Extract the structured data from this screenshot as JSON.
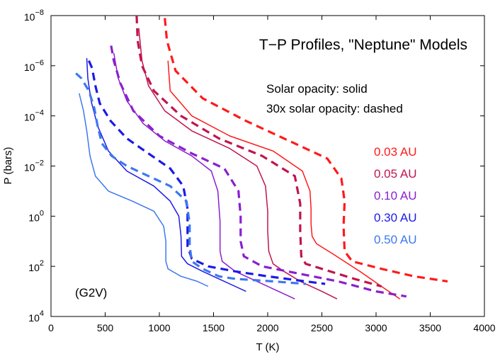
{
  "chart_data": {
    "type": "line",
    "title": "T−P Profiles, \"Neptune\" Models",
    "notes": [
      "Solar opacity: solid",
      "30x solar opacity: dashed"
    ],
    "annotation": "(G2V)",
    "xlabel": "T (K)",
    "ylabel": "P (bars)",
    "xlim": [
      0,
      4000
    ],
    "ylim_log10": [
      -8,
      4
    ],
    "y_inverted": true,
    "x_ticks": [
      "0",
      "500",
      "1000",
      "1500",
      "2000",
      "2500",
      "3000",
      "3500",
      "4000"
    ],
    "y_ticks": [
      {
        "base": "10",
        "exp": "−8"
      },
      {
        "base": "10",
        "exp": "−6"
      },
      {
        "base": "10",
        "exp": "−4"
      },
      {
        "base": "10",
        "exp": "−2"
      },
      {
        "base": "10",
        "exp": "0"
      },
      {
        "base": "10",
        "exp": "2"
      },
      {
        "base": "10",
        "exp": "4"
      }
    ],
    "legend": [
      {
        "label": "0.03 AU",
        "color": "#ff1a1a"
      },
      {
        "label": "0.05 AU",
        "color": "#c0154d"
      },
      {
        "label": "0.10 AU",
        "color": "#8a1fd0"
      },
      {
        "label": "0.30 AU",
        "color": "#1c1ae6"
      },
      {
        "label": "0.50 AU",
        "color": "#3c78f0"
      }
    ],
    "series": [
      {
        "name": "0.03 AU solar",
        "style": "solid",
        "color": "#ff1a1a",
        "points": [
          [
            1080,
            -6.2
          ],
          [
            1100,
            -5.0
          ],
          [
            1300,
            -4.0
          ],
          [
            1650,
            -3.2
          ],
          [
            2050,
            -2.6
          ],
          [
            2320,
            -1.8
          ],
          [
            2390,
            -1.0
          ],
          [
            2400,
            -0.3
          ],
          [
            2400,
            0.3
          ],
          [
            2410,
            0.8
          ],
          [
            2450,
            1.1
          ],
          [
            2600,
            1.5
          ],
          [
            2850,
            2.2
          ],
          [
            3050,
            2.8
          ],
          [
            3220,
            3.3
          ]
        ]
      },
      {
        "name": "0.05 AU solar",
        "style": "solid",
        "color": "#c0154d",
        "points": [
          [
            810,
            -7.5
          ],
          [
            840,
            -6.2
          ],
          [
            900,
            -5.2
          ],
          [
            1050,
            -4.2
          ],
          [
            1300,
            -3.4
          ],
          [
            1650,
            -2.7
          ],
          [
            1900,
            -2.0
          ],
          [
            1980,
            -1.2
          ],
          [
            2000,
            -0.2
          ],
          [
            2000,
            0.6
          ],
          [
            2010,
            1.4
          ],
          [
            2050,
            1.9
          ],
          [
            2150,
            2.2
          ],
          [
            2300,
            2.6
          ],
          [
            2500,
            3.0
          ],
          [
            2640,
            3.3
          ]
        ]
      },
      {
        "name": "0.10 AU solar",
        "style": "solid",
        "color": "#8a1fd0",
        "points": [
          [
            580,
            -6.5
          ],
          [
            620,
            -5.5
          ],
          [
            700,
            -4.6
          ],
          [
            850,
            -3.7
          ],
          [
            1050,
            -3.0
          ],
          [
            1300,
            -2.4
          ],
          [
            1480,
            -1.8
          ],
          [
            1540,
            -1.0
          ],
          [
            1560,
            0.2
          ],
          [
            1560,
            1.4
          ],
          [
            1580,
            1.8
          ],
          [
            1700,
            2.2
          ],
          [
            1900,
            2.6
          ],
          [
            2100,
            3.0
          ],
          [
            2250,
            3.3
          ]
        ]
      },
      {
        "name": "0.30 AU solar",
        "style": "solid",
        "color": "#1c1ae6",
        "points": [
          [
            330,
            -6.3
          ],
          [
            340,
            -5.5
          ],
          [
            370,
            -4.6
          ],
          [
            430,
            -3.6
          ],
          [
            530,
            -2.6
          ],
          [
            700,
            -1.8
          ],
          [
            950,
            -1.2
          ],
          [
            1100,
            -0.6
          ],
          [
            1180,
            0.0
          ],
          [
            1200,
            0.8
          ],
          [
            1205,
            1.6
          ],
          [
            1260,
            1.9
          ],
          [
            1400,
            2.2
          ],
          [
            1550,
            2.5
          ],
          [
            1700,
            2.8
          ],
          [
            1800,
            3.0
          ]
        ]
      },
      {
        "name": "0.50 AU solar",
        "style": "solid",
        "color": "#3c78f0",
        "points": [
          [
            260,
            -4.9
          ],
          [
            300,
            -4.2
          ],
          [
            330,
            -3.4
          ],
          [
            360,
            -2.4
          ],
          [
            410,
            -1.6
          ],
          [
            530,
            -1.0
          ],
          [
            750,
            -0.6
          ],
          [
            950,
            -0.2
          ],
          [
            1040,
            0.4
          ],
          [
            1060,
            1.0
          ],
          [
            1060,
            1.8
          ],
          [
            1080,
            2.1
          ],
          [
            1200,
            2.4
          ],
          [
            1350,
            2.6
          ],
          [
            1450,
            2.8
          ]
        ]
      },
      {
        "name": "0.03 AU 30x",
        "style": "dashed",
        "color": "#ff1a1a",
        "points": [
          [
            1050,
            -7.9
          ],
          [
            1070,
            -7.0
          ],
          [
            1150,
            -5.8
          ],
          [
            1400,
            -4.7
          ],
          [
            1800,
            -3.8
          ],
          [
            2200,
            -3.0
          ],
          [
            2550,
            -2.3
          ],
          [
            2680,
            -1.5
          ],
          [
            2710,
            -0.6
          ],
          [
            2700,
            0.4
          ],
          [
            2710,
            1.4
          ],
          [
            2780,
            1.8
          ],
          [
            3050,
            2.1
          ],
          [
            3350,
            2.4
          ],
          [
            3660,
            2.6
          ]
        ]
      },
      {
        "name": "0.05 AU 30x",
        "style": "dashed",
        "color": "#c0154d",
        "points": [
          [
            790,
            -8.0
          ],
          [
            800,
            -7.0
          ],
          [
            840,
            -6.0
          ],
          [
            950,
            -5.0
          ],
          [
            1200,
            -4.0
          ],
          [
            1550,
            -3.1
          ],
          [
            1950,
            -2.4
          ],
          [
            2250,
            -1.6
          ],
          [
            2300,
            -0.5
          ],
          [
            2300,
            0.6
          ],
          [
            2310,
            1.6
          ],
          [
            2350,
            1.9
          ],
          [
            2500,
            2.1
          ],
          [
            2800,
            2.5
          ],
          [
            3050,
            2.8
          ]
        ]
      },
      {
        "name": "0.10 AU 30x",
        "style": "dashed",
        "color": "#8a1fd0",
        "points": [
          [
            555,
            -6.8
          ],
          [
            580,
            -6.2
          ],
          [
            640,
            -5.3
          ],
          [
            760,
            -4.2
          ],
          [
            1000,
            -3.2
          ],
          [
            1300,
            -2.5
          ],
          [
            1600,
            -1.9
          ],
          [
            1730,
            -1.0
          ],
          [
            1750,
            0.0
          ],
          [
            1750,
            1.0
          ],
          [
            1780,
            1.6
          ],
          [
            1950,
            2.0
          ],
          [
            2300,
            2.3
          ],
          [
            2650,
            2.6
          ],
          [
            3000,
            3.0
          ],
          [
            3280,
            3.2
          ]
        ]
      },
      {
        "name": "0.30 AU 30x",
        "style": "dashed",
        "color": "#1c1ae6",
        "points": [
          [
            350,
            -6.2
          ],
          [
            380,
            -5.9
          ],
          [
            410,
            -5.2
          ],
          [
            450,
            -4.5
          ],
          [
            550,
            -3.8
          ],
          [
            700,
            -3.1
          ],
          [
            900,
            -2.5
          ],
          [
            1100,
            -1.9
          ],
          [
            1220,
            -1.2
          ],
          [
            1260,
            -0.3
          ],
          [
            1260,
            0.6
          ],
          [
            1260,
            1.2
          ],
          [
            1300,
            1.7
          ],
          [
            1450,
            2.0
          ],
          [
            1700,
            2.2
          ],
          [
            2000,
            2.4
          ],
          [
            2350,
            2.6
          ],
          [
            2530,
            2.7
          ]
        ]
      },
      {
        "name": "0.50 AU 30x",
        "style": "dashed",
        "color": "#3c78f0",
        "points": [
          [
            230,
            -5.7
          ],
          [
            280,
            -5.5
          ],
          [
            350,
            -5.0
          ],
          [
            400,
            -4.3
          ],
          [
            430,
            -3.6
          ],
          [
            470,
            -2.9
          ],
          [
            560,
            -2.4
          ],
          [
            700,
            -2.0
          ],
          [
            900,
            -1.6
          ],
          [
            1100,
            -1.2
          ],
          [
            1250,
            -0.6
          ],
          [
            1280,
            0.3
          ],
          [
            1280,
            1.2
          ],
          [
            1300,
            1.8
          ],
          [
            1400,
            2.1
          ],
          [
            1550,
            2.4
          ],
          [
            1700,
            2.5
          ],
          [
            2050,
            2.6
          ],
          [
            2350,
            2.7
          ]
        ]
      }
    ]
  }
}
